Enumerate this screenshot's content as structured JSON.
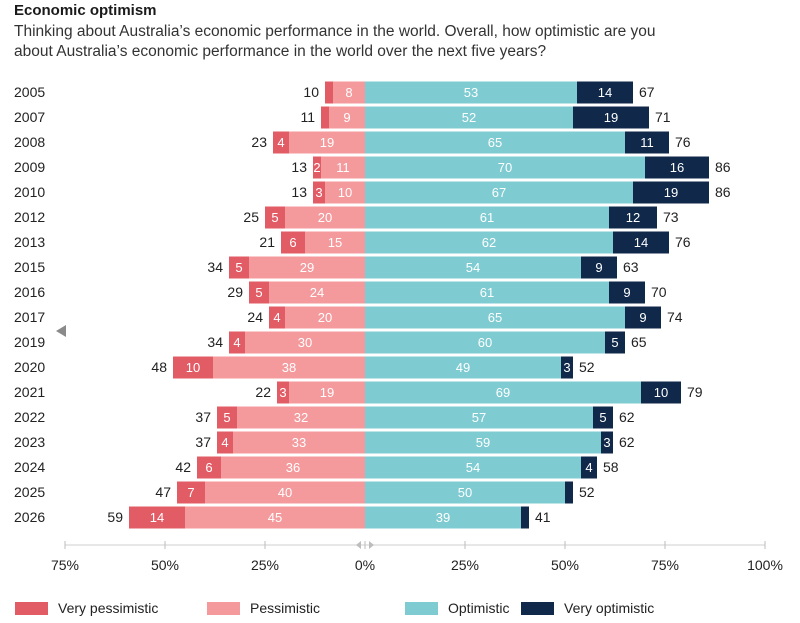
{
  "title": "Economic optimism",
  "subtitle": "Thinking about Australia’s economic performance in the world. Overall, how optimistic are you about Australia’s economic performance in the world over the next five years?",
  "colors": {
    "very_pessimistic": "#e25c66",
    "pessimistic": "#f4999c",
    "optimistic": "#7ecbd2",
    "very_optimistic": "#10284a"
  },
  "chart_data": {
    "type": "bar",
    "orientation": "horizontal-diverging",
    "categories": [
      "2005",
      "2007",
      "2008",
      "2009",
      "2010",
      "2012",
      "2013",
      "2015",
      "2016",
      "2017",
      "2019",
      "2020",
      "2021",
      "2022",
      "2023",
      "2024",
      "2025",
      "2026"
    ],
    "series": [
      {
        "name": "Very pessimistic",
        "side": "negative",
        "values": [
          2,
          2,
          4,
          2,
          3,
          5,
          6,
          5,
          5,
          4,
          4,
          10,
          3,
          5,
          4,
          6,
          7,
          14
        ],
        "labels": [
          "",
          "",
          "4",
          "2",
          "3",
          "5",
          "6",
          "5",
          "5",
          "4",
          "4",
          "10",
          "3",
          "5",
          "4",
          "6",
          "7",
          "14"
        ]
      },
      {
        "name": "Pessimistic",
        "side": "negative",
        "values": [
          8,
          9,
          19,
          11,
          10,
          20,
          15,
          29,
          24,
          20,
          30,
          38,
          19,
          32,
          33,
          36,
          40,
          45
        ],
        "labels": [
          "8",
          "9",
          "19",
          "11",
          "10",
          "20",
          "15",
          "29",
          "24",
          "20",
          "30",
          "38",
          "19",
          "32",
          "33",
          "36",
          "40",
          "45"
        ]
      },
      {
        "name": "Optimistic",
        "side": "positive",
        "values": [
          53,
          52,
          65,
          70,
          67,
          61,
          62,
          54,
          61,
          65,
          60,
          49,
          69,
          57,
          59,
          54,
          50,
          39
        ],
        "labels": [
          "53",
          "52",
          "65",
          "70",
          "67",
          "61",
          "62",
          "54",
          "61",
          "65",
          "60",
          "49",
          "69",
          "57",
          "59",
          "54",
          "50",
          "39"
        ]
      },
      {
        "name": "Very optimistic",
        "side": "positive",
        "values": [
          14,
          19,
          11,
          16,
          19,
          12,
          14,
          9,
          9,
          9,
          5,
          3,
          10,
          5,
          3,
          4,
          2,
          2
        ],
        "labels": [
          "14",
          "19",
          "11",
          "16",
          "19",
          "12",
          "14",
          "9",
          "9",
          "9",
          "5",
          "3",
          "10",
          "5",
          "3",
          "4",
          "",
          ""
        ]
      }
    ],
    "totals_negative": [
      "10",
      "11",
      "23",
      "13",
      "13",
      "25",
      "21",
      "34",
      "29",
      "24",
      "34",
      "48",
      "22",
      "37",
      "37",
      "42",
      "47",
      "59"
    ],
    "totals_positive": [
      "67",
      "71",
      "76",
      "86",
      "86",
      "73",
      "76",
      "63",
      "70",
      "74",
      "65",
      "52",
      "79",
      "62",
      "62",
      "58",
      "52",
      "41"
    ],
    "xlim": [
      -75,
      100
    ],
    "xticks": [
      -75,
      -50,
      -25,
      0,
      25,
      50,
      75,
      100
    ],
    "xtick_labels": [
      "75%",
      "50%",
      "25%",
      "0%",
      "25%",
      "50%",
      "75%",
      "100%"
    ],
    "legend_position": "bottom"
  }
}
